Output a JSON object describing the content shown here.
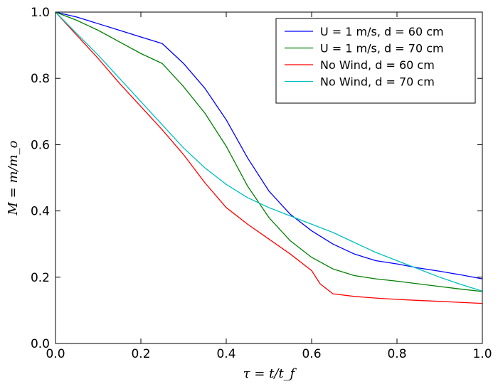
{
  "chart_data": {
    "type": "line",
    "title": "",
    "xlabel": "τ = t/t_f",
    "ylabel": "M = m/m_o",
    "xlim": [
      0.0,
      1.0
    ],
    "ylim": [
      0.0,
      1.0
    ],
    "x_ticks": [
      "0.0",
      "0.2",
      "0.4",
      "0.6",
      "0.8",
      "1.0"
    ],
    "y_ticks": [
      "0.0",
      "0.2",
      "0.4",
      "0.6",
      "0.8",
      "1.0"
    ],
    "grid": false,
    "legend_position": "top-right",
    "series": [
      {
        "name": "U = 1 m/s, d = 60 cm",
        "color": "#0000ff",
        "x": [
          0.0,
          0.05,
          0.1,
          0.15,
          0.2,
          0.25,
          0.3,
          0.35,
          0.4,
          0.45,
          0.5,
          0.55,
          0.6,
          0.65,
          0.7,
          0.75,
          0.8,
          0.85,
          0.9,
          0.95,
          1.0
        ],
        "y": [
          1.0,
          0.985,
          0.965,
          0.945,
          0.925,
          0.905,
          0.845,
          0.77,
          0.675,
          0.56,
          0.46,
          0.39,
          0.34,
          0.3,
          0.27,
          0.25,
          0.24,
          0.228,
          0.218,
          0.207,
          0.195
        ]
      },
      {
        "name": "U = 1 m/s, d = 70 cm",
        "color": "#008000",
        "x": [
          0.0,
          0.05,
          0.1,
          0.15,
          0.2,
          0.25,
          0.3,
          0.35,
          0.4,
          0.45,
          0.5,
          0.55,
          0.6,
          0.65,
          0.7,
          0.75,
          0.8,
          0.85,
          0.9,
          0.95,
          1.0
        ],
        "y": [
          1.0,
          0.975,
          0.945,
          0.91,
          0.875,
          0.845,
          0.775,
          0.695,
          0.595,
          0.475,
          0.38,
          0.31,
          0.26,
          0.225,
          0.205,
          0.195,
          0.188,
          0.18,
          0.172,
          0.164,
          0.157
        ]
      },
      {
        "name": "No Wind, d = 60 cm",
        "color": "#ff0000",
        "x": [
          0.0,
          0.05,
          0.1,
          0.15,
          0.2,
          0.25,
          0.3,
          0.35,
          0.4,
          0.45,
          0.5,
          0.55,
          0.6,
          0.62,
          0.65,
          0.7,
          0.75,
          0.8,
          0.85,
          0.9,
          0.95,
          1.0
        ],
        "y": [
          1.0,
          0.93,
          0.86,
          0.785,
          0.715,
          0.645,
          0.57,
          0.485,
          0.41,
          0.36,
          0.315,
          0.27,
          0.22,
          0.18,
          0.15,
          0.142,
          0.137,
          0.133,
          0.13,
          0.127,
          0.124,
          0.121
        ]
      },
      {
        "name": "No Wind, d = 70 cm",
        "color": "#00bfbf",
        "x": [
          0.0,
          0.05,
          0.1,
          0.15,
          0.2,
          0.25,
          0.3,
          0.35,
          0.4,
          0.45,
          0.5,
          0.55,
          0.6,
          0.65,
          0.7,
          0.75,
          0.8,
          0.85,
          0.9,
          0.95,
          1.0
        ],
        "y": [
          1.0,
          0.935,
          0.87,
          0.8,
          0.73,
          0.66,
          0.59,
          0.53,
          0.48,
          0.44,
          0.41,
          0.385,
          0.36,
          0.335,
          0.305,
          0.275,
          0.25,
          0.225,
          0.2,
          0.178,
          0.158
        ]
      }
    ]
  }
}
